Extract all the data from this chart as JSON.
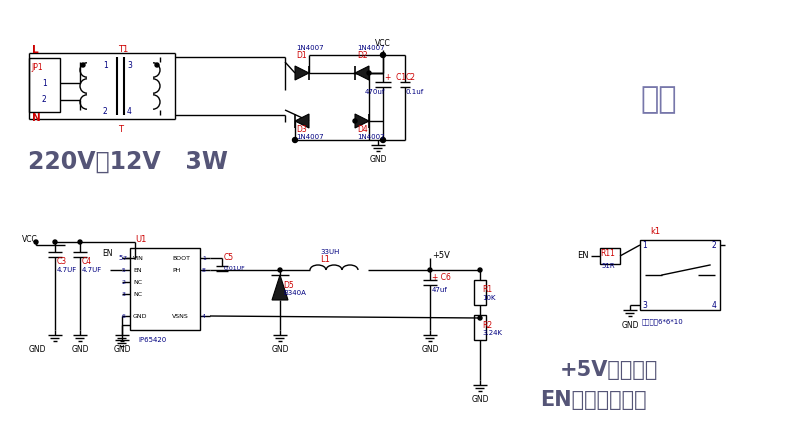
{
  "bg_color": "#ffffff",
  "line_color": "#000000",
  "label_color_red": "#cc0000",
  "label_color_blue": "#000099",
  "label_color_dark": "#333333",
  "title_color": "#666688",
  "fig_width": 7.88,
  "fig_height": 4.47,
  "text_220v": "220V转12V   3W",
  "text_dianyuan": "电源",
  "text_5v_reset": "+5V复位按键",
  "text_en": "EN浮空表示使能"
}
